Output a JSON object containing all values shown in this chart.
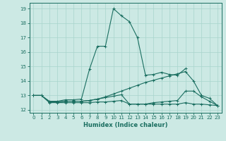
{
  "xlabel": "Humidex (Indice chaleur)",
  "xlim": [
    -0.5,
    23.5
  ],
  "ylim": [
    11.8,
    19.4
  ],
  "yticks": [
    12,
    13,
    14,
    15,
    16,
    17,
    18,
    19
  ],
  "xticks": [
    0,
    1,
    2,
    3,
    4,
    5,
    6,
    7,
    8,
    9,
    10,
    11,
    12,
    13,
    14,
    15,
    16,
    17,
    18,
    19,
    20,
    21,
    22,
    23
  ],
  "bg_color": "#cce9e4",
  "grid_color": "#a8d4cc",
  "line_color": "#1a6e60",
  "series": [
    {
      "x": [
        0,
        1,
        2,
        3,
        4,
        5,
        6,
        7,
        8,
        9,
        10,
        11,
        12,
        13,
        14,
        15,
        16,
        17,
        18,
        19
      ],
      "y": [
        13.0,
        13.0,
        12.6,
        12.6,
        12.7,
        12.7,
        12.75,
        14.8,
        16.4,
        16.4,
        19.0,
        18.5,
        18.1,
        17.0,
        14.4,
        14.45,
        14.6,
        14.45,
        14.4,
        14.85
      ]
    },
    {
      "x": [
        0,
        1,
        2,
        3,
        4,
        5,
        6,
        7,
        8,
        9,
        10,
        11,
        12,
        13,
        14,
        15,
        16,
        17,
        18,
        19,
        20,
        21,
        22,
        23
      ],
      "y": [
        13.0,
        13.0,
        12.55,
        12.55,
        12.6,
        12.6,
        12.6,
        12.65,
        12.75,
        12.9,
        13.1,
        13.3,
        13.5,
        13.7,
        13.9,
        14.05,
        14.2,
        14.35,
        14.5,
        14.65,
        14.0,
        13.0,
        12.8,
        12.3
      ]
    },
    {
      "x": [
        0,
        1,
        2,
        3,
        4,
        5,
        6,
        7,
        8,
        9,
        10,
        11,
        12,
        13,
        14,
        15,
        16,
        17,
        18,
        19,
        20,
        21,
        22,
        23
      ],
      "y": [
        13.0,
        13.0,
        12.5,
        12.5,
        12.5,
        12.5,
        12.5,
        12.5,
        12.55,
        12.55,
        12.6,
        12.65,
        12.4,
        12.4,
        12.4,
        12.4,
        12.4,
        12.4,
        12.4,
        12.5,
        12.4,
        12.4,
        12.35,
        12.3
      ]
    },
    {
      "x": [
        2,
        3,
        4,
        5,
        6,
        7,
        8,
        9,
        10,
        11,
        12,
        13,
        14,
        15,
        16,
        17,
        18,
        19,
        20,
        21,
        22,
        23
      ],
      "y": [
        12.55,
        12.55,
        12.6,
        12.6,
        12.6,
        12.65,
        12.75,
        12.85,
        12.95,
        13.05,
        12.4,
        12.4,
        12.4,
        12.5,
        12.55,
        12.6,
        12.65,
        13.3,
        13.3,
        12.9,
        12.6,
        12.3
      ]
    }
  ]
}
